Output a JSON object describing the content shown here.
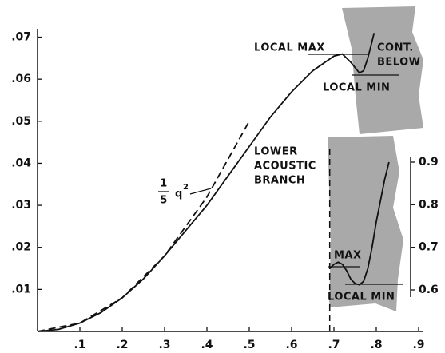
{
  "chart_data": {
    "type": "line",
    "xlim": [
      0,
      0.9
    ],
    "xticks": [
      {
        "value": 0.1,
        "label": ".1"
      },
      {
        "value": 0.2,
        "label": ".2"
      },
      {
        "value": 0.3,
        "label": ".3"
      },
      {
        "value": 0.4,
        "label": ".4"
      },
      {
        "value": 0.5,
        "label": ".5"
      },
      {
        "value": 0.6,
        "label": ".6"
      },
      {
        "value": 0.7,
        "label": ".7"
      },
      {
        "value": 0.8,
        "label": ".8"
      },
      {
        "value": 0.9,
        "label": ".9"
      }
    ],
    "ylim": [
      0,
      0.072
    ],
    "yticks": [
      {
        "value": 0.01,
        "label": ".01"
      },
      {
        "value": 0.02,
        "label": ".02"
      },
      {
        "value": 0.03,
        "label": ".03"
      },
      {
        "value": 0.04,
        "label": ".04"
      },
      {
        "value": 0.05,
        "label": ".05"
      },
      {
        "value": 0.06,
        "label": ".06"
      },
      {
        "value": 0.07,
        "label": ".07"
      }
    ],
    "y2lim": [
      0.6,
      0.9
    ],
    "y2ticks": [
      0.6,
      0.7,
      0.8,
      0.9
    ],
    "boundary_x": 0.69,
    "series": [
      {
        "color": "#111111",
        "dash": false,
        "x": [
          0,
          0.05,
          0.1,
          0.15,
          0.2,
          0.25,
          0.3,
          0.35,
          0.4,
          0.45,
          0.5,
          0.55,
          0.6,
          0.65,
          0.7,
          0.72,
          0.74,
          0.76,
          0.77,
          0.78,
          0.79,
          0.795
        ],
        "values": [
          0,
          0.0005,
          0.002,
          0.0045,
          0.008,
          0.0125,
          0.018,
          0.024,
          0.03,
          0.037,
          0.044,
          0.051,
          0.057,
          0.062,
          0.0655,
          0.066,
          0.064,
          0.0615,
          0.062,
          0.065,
          0.069,
          0.071
        ]
      },
      {
        "color": "#111111",
        "dash": true,
        "x": [
          0,
          0.1,
          0.2,
          0.3,
          0.4,
          0.5
        ],
        "values": [
          0,
          0.002,
          0.008,
          0.018,
          0.032,
          0.05
        ]
      },
      {
        "color": "#111111",
        "dash": false,
        "axis": "y2",
        "x": [
          0.69,
          0.7,
          0.71,
          0.72,
          0.73,
          0.74,
          0.75,
          0.76,
          0.77,
          0.78,
          0.79,
          0.8,
          0.81,
          0.82,
          0.83
        ],
        "values": [
          0.65,
          0.66,
          0.665,
          0.66,
          0.645,
          0.625,
          0.615,
          0.612,
          0.62,
          0.65,
          0.7,
          0.76,
          0.81,
          0.86,
          0.9
        ]
      }
    ],
    "annotations": {
      "local_max": "LOCAL MAX",
      "cont_below": [
        "CONT.",
        "BELOW"
      ],
      "local_min_upper": "LOCAL MIN",
      "lower_acoustic_branch": [
        "LOWER",
        "ACOUSTIC",
        "BRANCH"
      ],
      "q_label": {
        "numerator": "1",
        "denominator": "5",
        "variable": "q",
        "exponent": "2"
      },
      "max": "MAX",
      "local_min_lower": "LOCAL MIN"
    }
  }
}
